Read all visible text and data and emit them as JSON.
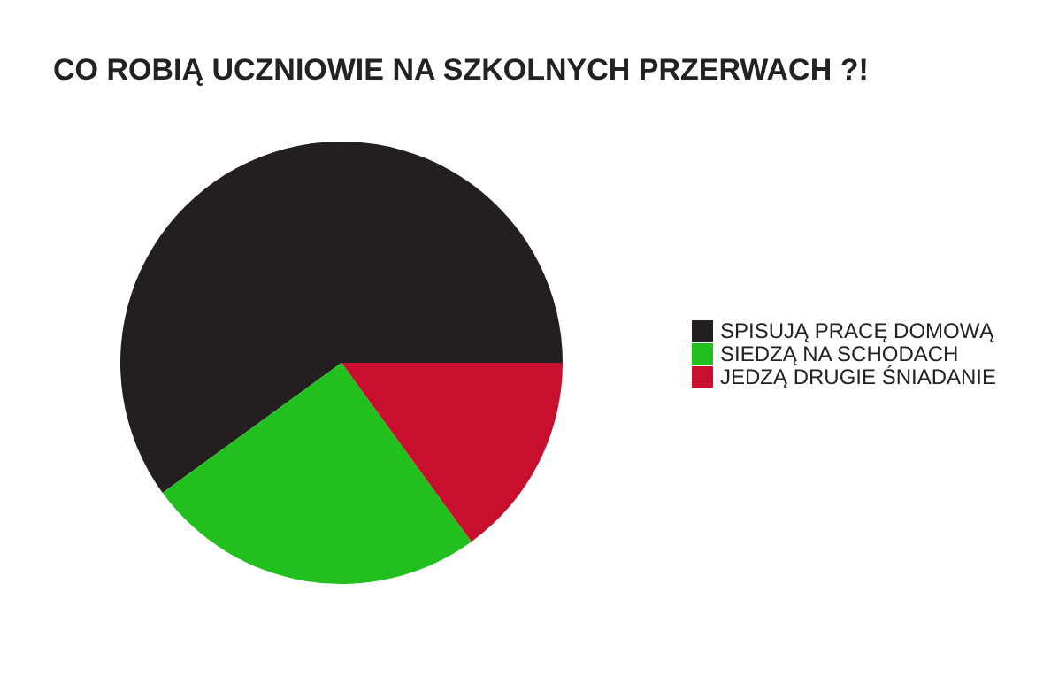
{
  "chart_data": {
    "type": "pie",
    "title": "CO ROBIĄ UCZNIOWIE NA SZKOLNYCH PRZERWACH ?!",
    "categories": [
      "SPISUJĄ PRACĘ DOMOWĄ",
      "SIEDZĄ NA SCHODACH",
      "JEDZĄ DRUGIE ŚNIADANIE"
    ],
    "values": [
      60,
      25,
      15
    ],
    "colors": [
      "#231f20",
      "#22c01e",
      "#c8102e"
    ],
    "legend": "right"
  }
}
